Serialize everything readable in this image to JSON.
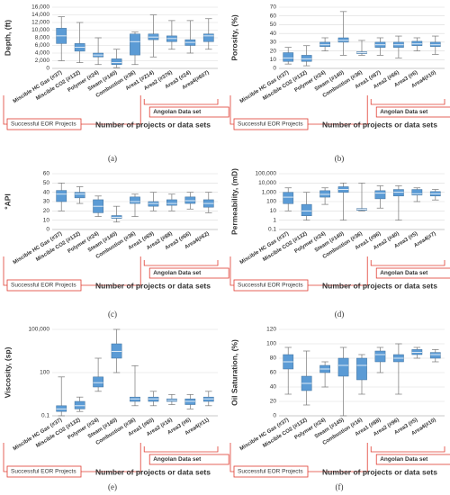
{
  "chart_data": [
    {
      "type": "box",
      "caption": "(a)",
      "ylabel": "Depth, (ft)",
      "xlabel": "Number of projects or data sets",
      "group_labels": [
        "Successful EOR Projects",
        "Angolan Data set"
      ],
      "color": "#5b9bd5",
      "grid": true,
      "ylog": false,
      "categories": [
        "Miscible HC Gas (#37)",
        "Miscible CO2 (#132)",
        "Polymer (#24)",
        "Steam (#140)",
        "Combustion (#36)",
        "Area1 (#214)",
        "Area2 (#376)",
        "Area3 (#24)",
        "Area4(#607)"
      ],
      "min": [
        2000,
        1500,
        1000,
        200,
        1000,
        3000,
        5000,
        4000,
        5000
      ],
      "q1": [
        6500,
        4500,
        3000,
        1000,
        3500,
        7500,
        7000,
        6000,
        7000
      ],
      "median": [
        8500,
        5500,
        3500,
        1500,
        7000,
        8200,
        7800,
        6800,
        8500
      ],
      "q3": [
        10500,
        6500,
        4000,
        2500,
        9000,
        9000,
        8500,
        7500,
        9000
      ],
      "max": [
        13500,
        12000,
        8000,
        5000,
        9500,
        14000,
        12500,
        12500,
        13000
      ],
      "ylim": [
        0,
        16000
      ],
      "yticks": [
        0,
        {
          "value": 2000,
          "label": "2,000"
        },
        {
          "value": 4000,
          "label": "4,000"
        },
        {
          "value": 6000,
          "label": "6,000"
        },
        {
          "value": 8000,
          "label": "8,000"
        },
        {
          "value": 10000,
          "label": "10,000"
        },
        {
          "value": 12000,
          "label": "12,000"
        },
        {
          "value": 14000,
          "label": "14,000"
        },
        {
          "value": 16000,
          "label": "16,000"
        }
      ]
    },
    {
      "type": "box",
      "caption": "(b)",
      "ylabel": "Porosity, (%)",
      "xlabel": "Number of projects or data sets",
      "group_labels": [
        "Successful EOR Projects",
        "Angolan Data set"
      ],
      "color": "#5b9bd5",
      "grid": true,
      "ylog": false,
      "categories": [
        "Miscible HC Gas (#37)",
        "Miscible CO2 (#132)",
        "Polymer (#24)",
        "Steam (#140)",
        "Combustion (#36)",
        "Area1 (#87)",
        "Area2 (#66)",
        "Area3 (#6)",
        "Area4(#10)"
      ],
      "min": [
        5,
        3,
        20,
        15,
        15,
        15,
        12,
        20,
        16
      ],
      "q1": [
        8,
        8,
        25,
        30,
        17,
        24,
        24,
        26,
        25
      ],
      "median": [
        12,
        11,
        27,
        32,
        18,
        27,
        27,
        28,
        27
      ],
      "q3": [
        18,
        15,
        30,
        35,
        19,
        30,
        30,
        31,
        30
      ],
      "max": [
        24,
        26,
        35,
        65,
        32,
        35,
        37,
        35,
        37
      ],
      "ylim": [
        0,
        70
      ],
      "yticks": [
        0,
        10,
        20,
        30,
        40,
        50,
        60,
        70
      ]
    },
    {
      "type": "box",
      "caption": "(c)",
      "ylabel": "°API",
      "xlabel": "Number of projects or data sets",
      "group_labels": [
        "Successful EOR Projects",
        "Angolan Data set"
      ],
      "color": "#5b9bd5",
      "grid": true,
      "ylog": false,
      "categories": [
        "Miscible HC Gas (#37)",
        "Miscible CO2 (#132)",
        "Polymer (#24)",
        "Steam (#140)",
        "Combustion (#36)",
        "Area1 (#69)",
        "Area2 (#88)",
        "Area3 (#66)",
        "Area4(#62)"
      ],
      "min": [
        20,
        28,
        14,
        8,
        14,
        20,
        20,
        22,
        18
      ],
      "q1": [
        30,
        34,
        18,
        12,
        28,
        25,
        26,
        28,
        24
      ],
      "median": [
        38,
        38,
        25,
        13,
        30,
        28,
        28,
        31,
        28
      ],
      "q3": [
        42,
        40,
        32,
        15,
        35,
        30,
        32,
        35,
        32
      ],
      "max": [
        50,
        46,
        36,
        25,
        38,
        40,
        38,
        40,
        40
      ],
      "ylim": [
        0,
        60
      ],
      "yticks": [
        0,
        10,
        20,
        30,
        40,
        50,
        60
      ]
    },
    {
      "type": "box",
      "caption": "(d)",
      "ylabel": "Permeability, (mD)",
      "xlabel": "Number of projects or data sets",
      "group_labels": [
        "Successful EOR Projects",
        "Angolan Data set"
      ],
      "color": "#5b9bd5",
      "grid": true,
      "ylog": true,
      "categories": [
        "Miscible HC Gas (#37)",
        "Miscible CO2 (#132)",
        "Polymer (#24)",
        "Steam (#140)",
        "Combustion (#36)",
        "Area1 (#96)",
        "Area2 (#40)",
        "Area3 (#5)",
        "Area4(#7)"
      ],
      "min": [
        10,
        1,
        50,
        1,
        10,
        20,
        1,
        100,
        150
      ],
      "q1": [
        60,
        3,
        300,
        1000,
        12,
        200,
        400,
        500,
        400
      ],
      "median": [
        300,
        10,
        600,
        2000,
        15,
        800,
        1000,
        700,
        700
      ],
      "q3": [
        1000,
        50,
        1500,
        4000,
        18,
        1500,
        2000,
        2000,
        1200
      ],
      "max": [
        3000,
        1000,
        3000,
        10000,
        10000,
        5000,
        5000,
        3000,
        2000
      ],
      "ylim": [
        0.1,
        100000
      ],
      "yticks": [
        0.1,
        1,
        10,
        100,
        {
          "value": 1000,
          "label": "1,000"
        },
        {
          "value": 10000,
          "label": "10,000"
        },
        {
          "value": 100000,
          "label": "100,000"
        }
      ]
    },
    {
      "type": "box",
      "caption": "(e)",
      "ylabel": "Viscosity, (sp)",
      "xlabel": "Number of projects or data sets",
      "group_labels": [
        "Successful EOR Projects",
        "Angolan Data set"
      ],
      "color": "#5b9bd5",
      "grid": true,
      "ylog": true,
      "categories": [
        "Miscible HC Gas (#37)",
        "Miscible CO2 (#132)",
        "Polymer (#24)",
        "Steam (#140)",
        "Combustion (#36)",
        "Area1 (#60)",
        "Area2 (#16)",
        "Area3 (#6)",
        "Area4(#11)"
      ],
      "min": [
        0.1,
        0.2,
        5,
        100,
        0.5,
        0.5,
        0.6,
        0.3,
        0.5
      ],
      "q1": [
        0.2,
        0.3,
        10,
        1000,
        1,
        1,
        1,
        0.6,
        1
      ],
      "median": [
        0.3,
        0.5,
        20,
        3000,
        1.5,
        1.5,
        1.2,
        1,
        1.5
      ],
      "q3": [
        0.5,
        1,
        50,
        10000,
        2,
        2,
        1.5,
        1.5,
        2
      ],
      "max": [
        50,
        2,
        1000,
        100000,
        300,
        5,
        3,
        3,
        5
      ],
      "ylim": [
        0.1,
        100000
      ],
      "yticks": [
        0.1,
        100,
        {
          "value": 100000,
          "label": "100,000"
        }
      ]
    },
    {
      "type": "box",
      "caption": "(f)",
      "ylabel": "Oil Saturation, (%)",
      "xlabel": "Number of projects or data sets",
      "group_labels": [
        "Successful EOR Projects",
        "Angolan Data set"
      ],
      "color": "#5b9bd5",
      "grid": true,
      "ylog": false,
      "categories": [
        "Miscible HC Gas (#37)",
        "Miscible CO2 (#132)",
        "Polymer (#24)",
        "Steam (#145)",
        "Combustion (#16)",
        "Area1 (#88)",
        "Area2 (#96)",
        "Area3 (#5)",
        "Area4(#10)"
      ],
      "min": [
        30,
        15,
        40,
        0,
        30,
        60,
        30,
        80,
        75
      ],
      "q1": [
        65,
        35,
        60,
        55,
        50,
        75,
        75,
        85,
        80
      ],
      "median": [
        75,
        45,
        65,
        70,
        70,
        85,
        80,
        88,
        85
      ],
      "q3": [
        85,
        55,
        70,
        80,
        80,
        90,
        85,
        92,
        88
      ],
      "max": [
        95,
        90,
        75,
        95,
        85,
        95,
        100,
        95,
        92
      ],
      "ylim": [
        0,
        120
      ],
      "yticks": [
        0,
        20,
        40,
        60,
        80,
        100,
        120
      ]
    }
  ]
}
